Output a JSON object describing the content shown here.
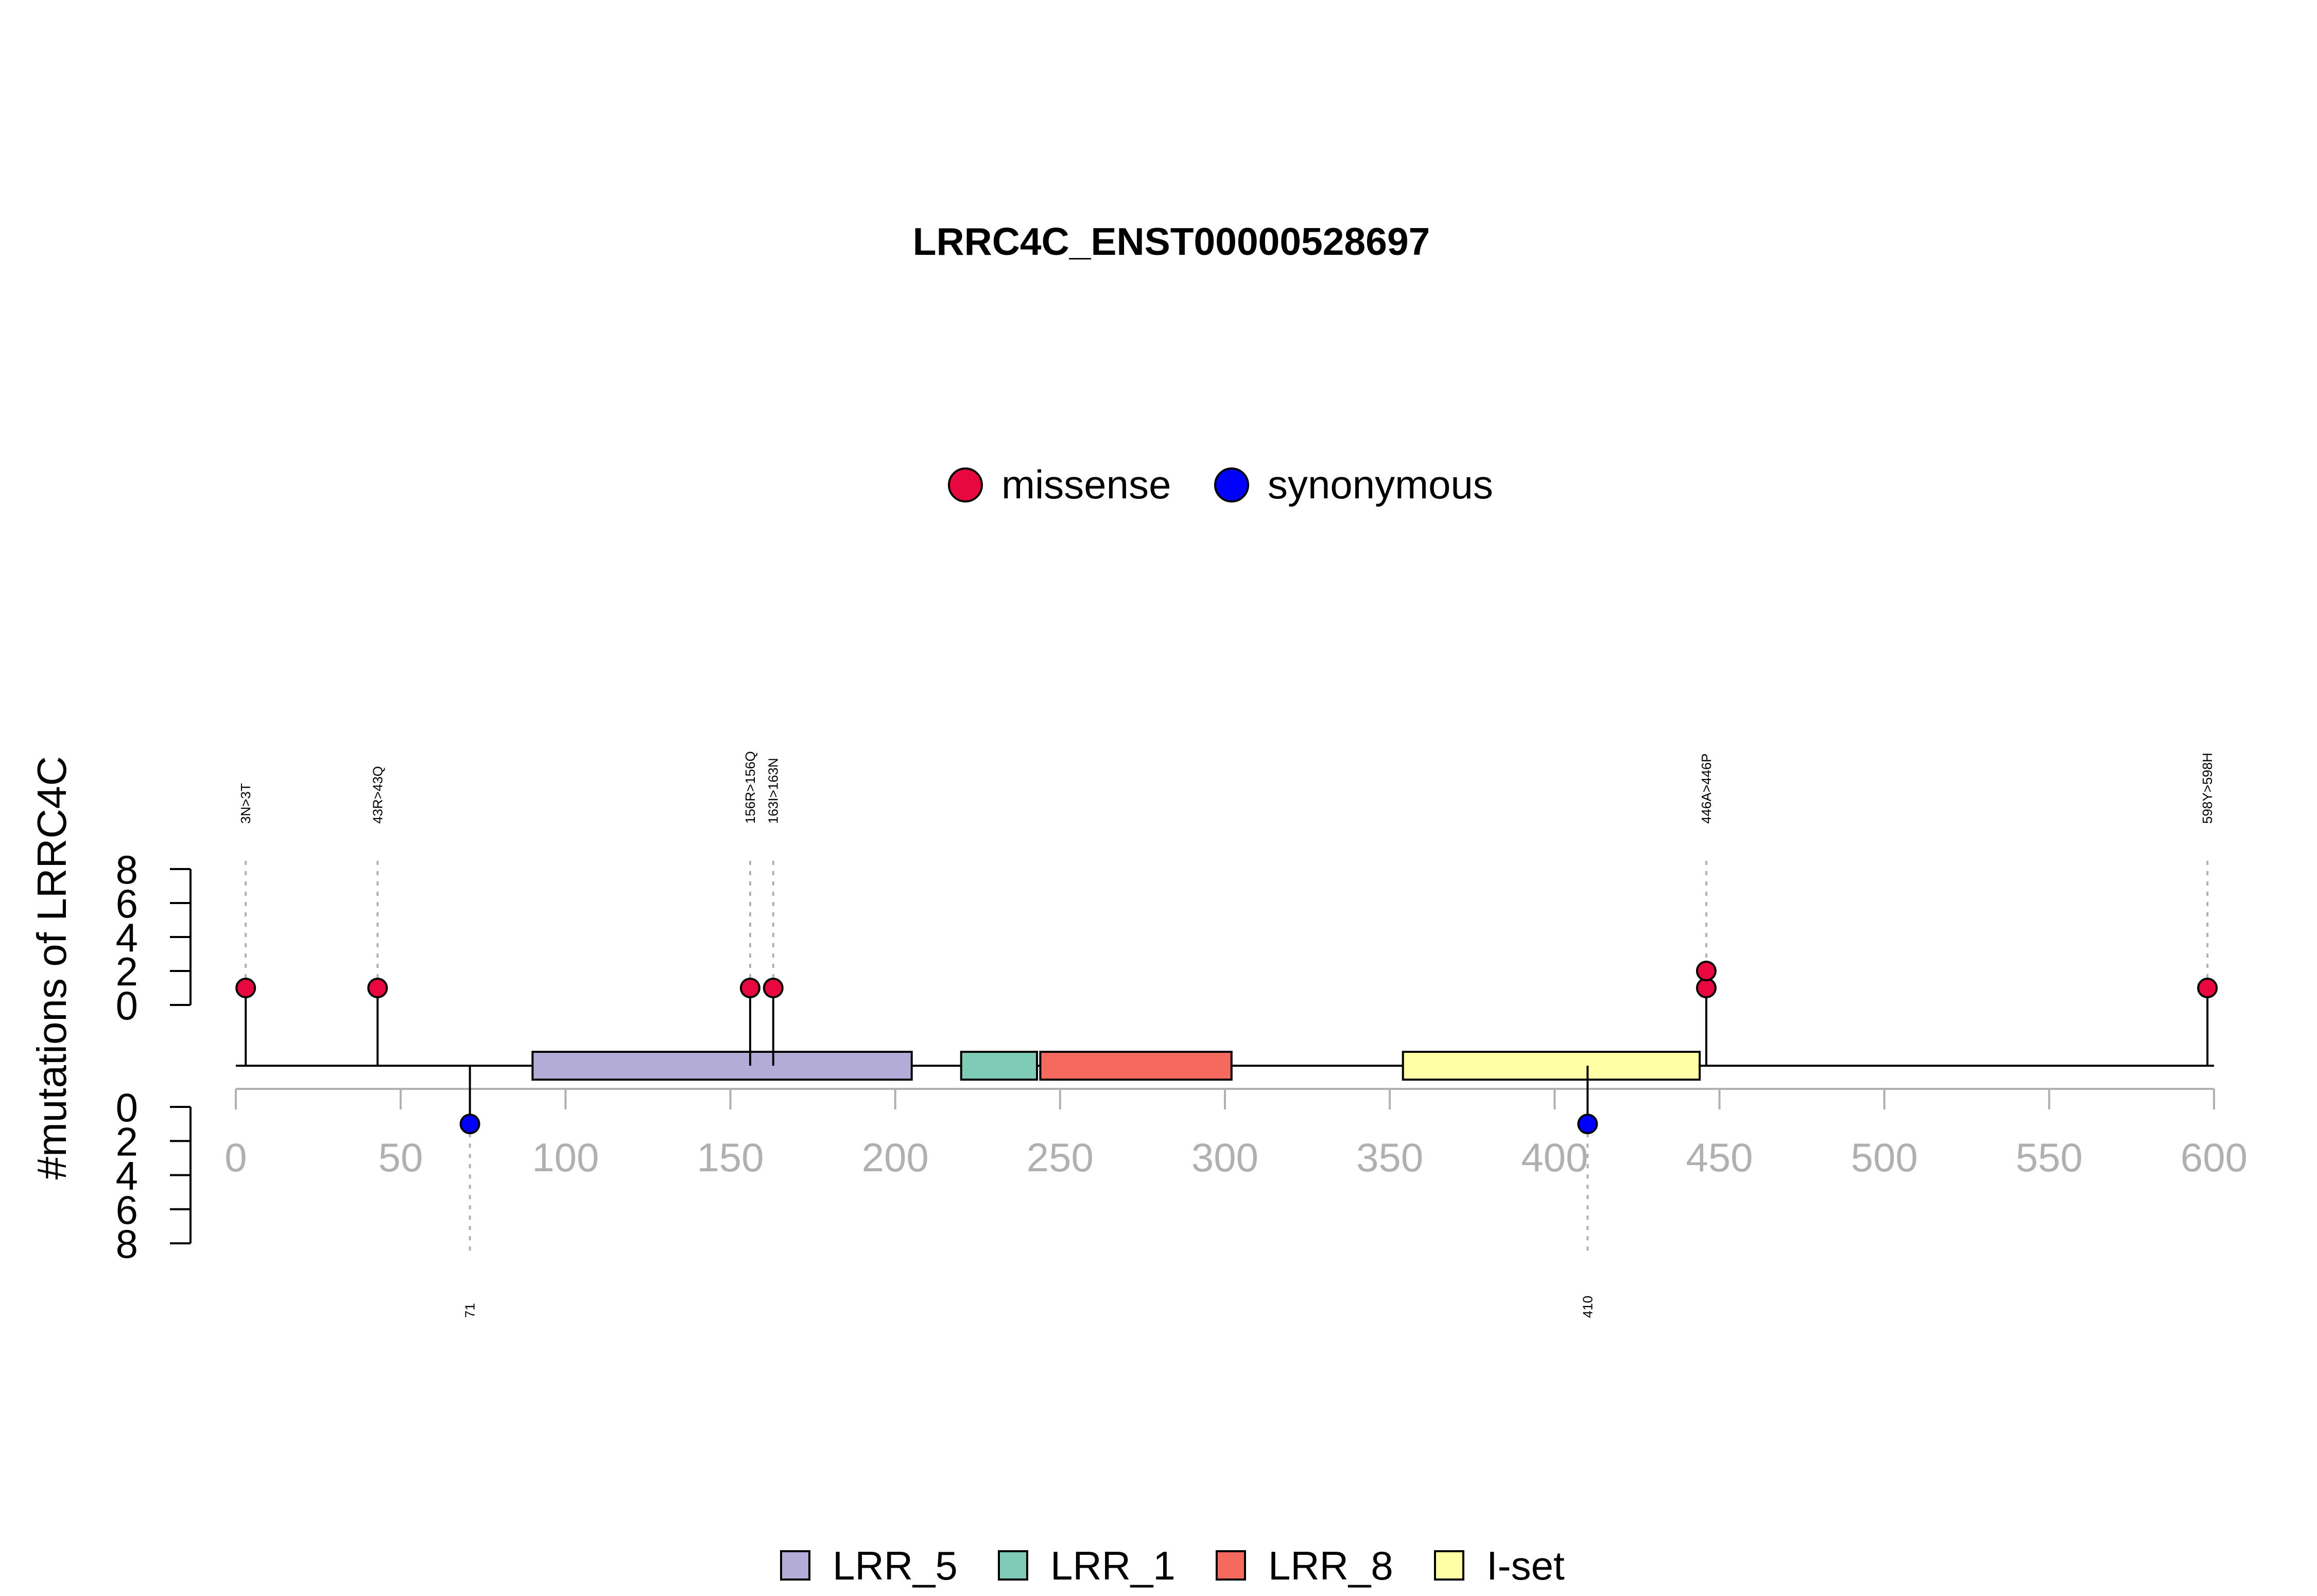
{
  "chart_data": {
    "type": "lollipop",
    "title": "LRRC4C_ENST00000528697",
    "ylabel": "#mutations of LRRC4C",
    "xlim": [
      0,
      600
    ],
    "x_ticks": [
      "0",
      "50",
      "100",
      "150",
      "200",
      "250",
      "300",
      "350",
      "400",
      "450",
      "500",
      "550",
      "600"
    ],
    "y_ticks_top": [
      "0",
      "2",
      "4",
      "6",
      "8"
    ],
    "y_ticks_bottom": [
      "0",
      "2",
      "4",
      "6",
      "8"
    ],
    "mutation_types": [
      {
        "name": "missense",
        "color": "#e8073f"
      },
      {
        "name": "synonymous",
        "color": "#0000ff"
      }
    ],
    "domains": [
      {
        "name": "LRR_5",
        "start": 90,
        "end": 205,
        "color": "#b3acd6"
      },
      {
        "name": "LRR_1",
        "start": 220,
        "end": 243,
        "color": "#7fcbb7"
      },
      {
        "name": "LRR_8",
        "start": 244,
        "end": 302,
        "color": "#f6695e"
      },
      {
        "name": "I-set",
        "start": 354,
        "end": 444,
        "color": "#ffffa6"
      }
    ],
    "mutations_top": [
      {
        "pos": 3,
        "label": "3N>3T",
        "type": "missense",
        "count": 1
      },
      {
        "pos": 43,
        "label": "43R>43Q",
        "type": "missense",
        "count": 1
      },
      {
        "pos": 156,
        "label": "156R>156Q",
        "type": "missense",
        "count": 1
      },
      {
        "pos": 163,
        "label": "163I>163N",
        "type": "missense",
        "count": 1
      },
      {
        "pos": 446,
        "label": "446A>446P",
        "type": "missense",
        "count": 2
      },
      {
        "pos": 598,
        "label": "598Y>598H",
        "type": "missense",
        "count": 1
      }
    ],
    "mutations_bottom": [
      {
        "pos": 71,
        "label": "71",
        "type": "synonymous",
        "count": 1
      },
      {
        "pos": 410,
        "label": "410",
        "type": "synonymous",
        "count": 1
      }
    ]
  }
}
